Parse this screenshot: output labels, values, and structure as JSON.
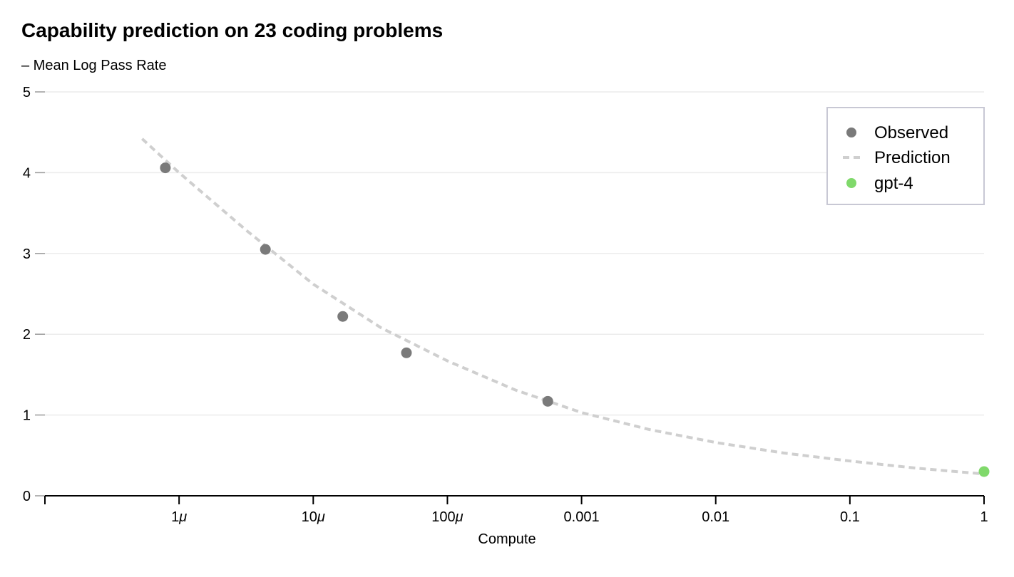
{
  "chart_data": {
    "type": "scatter",
    "title": "Capability prediction on 23 coding problems",
    "ylabel": "– Mean Log Pass Rate",
    "xlabel": "Compute",
    "x_scale": "log",
    "xlim": [
      1e-07,
      1
    ],
    "ylim": [
      0,
      5
    ],
    "y_ticks": [
      0,
      1,
      2,
      3,
      4,
      5
    ],
    "y_tick_labels": [
      "0",
      "1",
      "2",
      "3",
      "4",
      "5"
    ],
    "x_ticks": [
      1e-06,
      1e-05,
      0.0001,
      0.001,
      0.01,
      0.1,
      1
    ],
    "x_tick_labels": [
      "1μ",
      "10μ",
      "100μ",
      "0.001",
      "0.01",
      "0.1",
      "1"
    ],
    "grid": true,
    "legend_position": "top-right",
    "series": [
      {
        "name": "Observed",
        "kind": "scatter",
        "color": "#7a7a7a",
        "x": [
          7.9e-07,
          4.4e-06,
          1.66e-05,
          4.95e-05,
          0.00056
        ],
        "y": [
          4.06,
          3.05,
          2.22,
          1.77,
          1.17
        ]
      },
      {
        "name": "Prediction",
        "kind": "line",
        "style": "dashed",
        "color": "#cfcfcf",
        "x": [
          5.3e-07,
          1e-06,
          3.2e-06,
          1e-05,
          3.2e-05,
          0.0001,
          0.00032,
          0.001,
          0.0032,
          0.01,
          0.032,
          0.1,
          0.32,
          1
        ],
        "y": [
          4.42,
          4.0,
          3.28,
          2.62,
          2.08,
          1.67,
          1.31,
          1.03,
          0.82,
          0.66,
          0.53,
          0.43,
          0.34,
          0.27
        ]
      },
      {
        "name": "gpt-4",
        "kind": "scatter",
        "color": "#80d96b",
        "x": [
          1
        ],
        "y": [
          0.3
        ]
      }
    ]
  }
}
